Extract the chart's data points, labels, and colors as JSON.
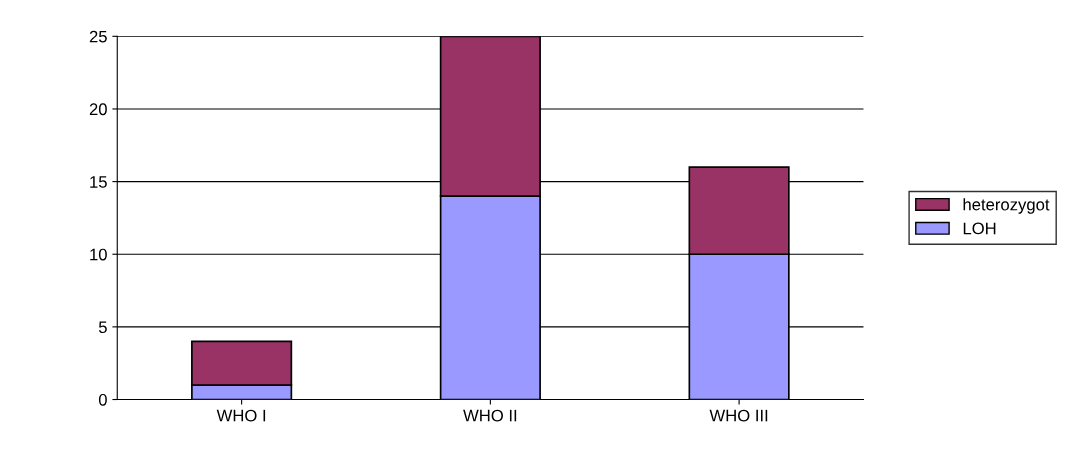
{
  "chart_data": {
    "type": "bar",
    "stacked": true,
    "categories": [
      "WHO I",
      "WHO II",
      "WHO III"
    ],
    "series": [
      {
        "name": "LOH",
        "color": "#9999ff",
        "values": [
          1,
          14,
          10
        ]
      },
      {
        "name": "heterozygot",
        "color": "#993366",
        "values": [
          3,
          11,
          6
        ]
      }
    ],
    "ylim": [
      0,
      25
    ],
    "yticks": [
      0,
      5,
      10,
      15,
      20,
      25
    ],
    "grid": "y",
    "legend": "right"
  }
}
